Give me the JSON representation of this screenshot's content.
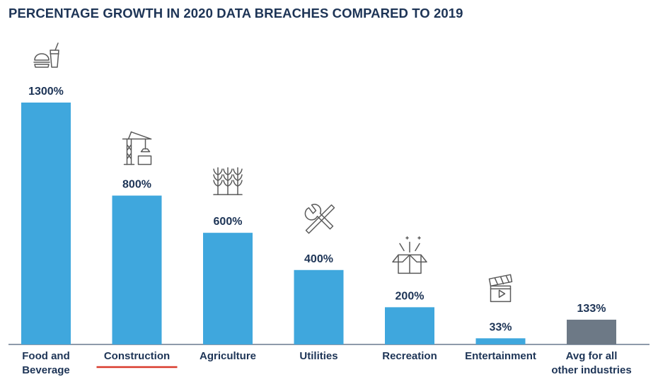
{
  "chart_data": {
    "type": "bar",
    "title": "PERCENTAGE GROWTH IN 2020 DATA BREACHES COMPARED TO 2019",
    "categories": [
      [
        "Food and",
        "Beverage"
      ],
      [
        "Construction"
      ],
      [
        "Agriculture"
      ],
      [
        "Utilities"
      ],
      [
        "Recreation"
      ],
      [
        "Entertainment"
      ],
      [
        "Avg for all",
        "other industries"
      ]
    ],
    "values": [
      1300,
      800,
      600,
      400,
      200,
      33,
      133
    ],
    "value_labels": [
      "1300%",
      "800%",
      "600%",
      "400%",
      "200%",
      "33%",
      "133%"
    ],
    "icons": [
      "food-beverage-icon",
      "construction-crane-icon",
      "wheat-icon",
      "wrench-screwdriver-icon",
      "gift-box-icon",
      "clapperboard-icon",
      ""
    ],
    "bar_colors": [
      "#3fa7dd",
      "#3fa7dd",
      "#3fa7dd",
      "#3fa7dd",
      "#3fa7dd",
      "#3fa7dd",
      "#6d7986"
    ],
    "highlighted_category": "Construction",
    "highlight_color": "#d93a2b",
    "ylim": [
      0,
      1300
    ],
    "grid": false,
    "xlabel": "",
    "ylabel": ""
  }
}
